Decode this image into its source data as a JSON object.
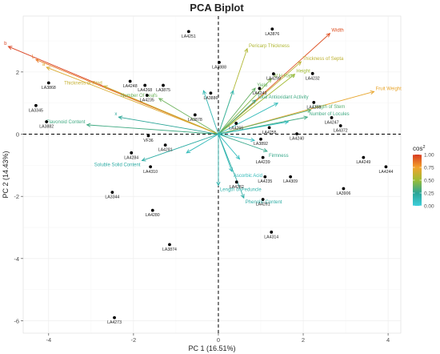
{
  "chart_data": {
    "type": "scatter",
    "title": "PCA Biplot",
    "xlabel": "PC 1 (16.51%)",
    "ylabel": "PC 2 (14.43%)",
    "xlim": [
      -4.6,
      4.3
    ],
    "ylim": [
      -6.4,
      3.8
    ],
    "xticks": [
      -4,
      -2,
      0,
      2,
      4
    ],
    "yticks": [
      -6,
      -4,
      -2,
      0,
      2
    ],
    "grid": true,
    "legend_position": "right",
    "legend": {
      "title": "cos",
      "title_sup": "2",
      "ticks": [
        1.0,
        0.75,
        0.5,
        0.25,
        0.0
      ],
      "tick_labels": [
        "1.00",
        "0.75",
        "0.50",
        "0.25",
        "0.00"
      ],
      "color_stops": [
        "#3ecfdb",
        "#2aa597",
        "#9bbd35",
        "#f3a22b",
        "#d73a1f"
      ]
    },
    "points": [
      {
        "label": "LA4251",
        "x": -0.7,
        "y": 3.3
      },
      {
        "label": "LA3876",
        "x": 1.27,
        "y": 3.38
      },
      {
        "label": "LA3888",
        "x": 0.02,
        "y": 2.31
      },
      {
        "label": "LA3868",
        "x": -4.0,
        "y": 1.65
      },
      {
        "label": "LA3345",
        "x": -4.3,
        "y": 0.92
      },
      {
        "label": "LA3882",
        "x": -4.05,
        "y": 0.4
      },
      {
        "label": "LA4248",
        "x": -2.08,
        "y": 1.7
      },
      {
        "label": "LA4268",
        "x": -1.73,
        "y": 1.57
      },
      {
        "label": "LA4235",
        "x": -1.68,
        "y": 1.25
      },
      {
        "label": "LA3875",
        "x": -1.3,
        "y": 1.57
      },
      {
        "label": "LA3886",
        "x": -0.18,
        "y": 1.32
      },
      {
        "label": "LA4299",
        "x": 1.3,
        "y": 1.94
      },
      {
        "label": "LA4232",
        "x": 2.22,
        "y": 1.95
      },
      {
        "label": "LA4243",
        "x": 0.97,
        "y": 1.47
      },
      {
        "label": "LA4258",
        "x": 2.25,
        "y": 1.02
      },
      {
        "label": "LA4247",
        "x": 2.67,
        "y": 0.53
      },
      {
        "label": "LA4372",
        "x": 2.88,
        "y": 0.27
      },
      {
        "label": "LA4255",
        "x": 1.2,
        "y": 0.21
      },
      {
        "label": "LA4240",
        "x": 1.85,
        "y": 0.01
      },
      {
        "label": "LA4266",
        "x": 0.42,
        "y": 0.35
      },
      {
        "label": "LA3892",
        "x": 1.0,
        "y": -0.16
      },
      {
        "label": "LA3878",
        "x": -0.55,
        "y": 0.62
      },
      {
        "label": "VF36",
        "x": -1.65,
        "y": -0.05
      },
      {
        "label": "LA4281",
        "x": -1.25,
        "y": -0.35
      },
      {
        "label": "LA4284",
        "x": -2.05,
        "y": -0.6
      },
      {
        "label": "LA4310",
        "x": -1.6,
        "y": -1.05
      },
      {
        "label": "LA4239",
        "x": 1.05,
        "y": -0.75
      },
      {
        "label": "LA4235",
        "x": 1.1,
        "y": -1.37
      },
      {
        "label": "LA4309",
        "x": 1.7,
        "y": -1.37
      },
      {
        "label": "LA4249",
        "x": 3.42,
        "y": -0.75
      },
      {
        "label": "LA4244",
        "x": 3.95,
        "y": -1.05
      },
      {
        "label": "LA3906",
        "x": 2.95,
        "y": -1.75
      },
      {
        "label": "LA4282",
        "x": 0.43,
        "y": -1.54
      },
      {
        "label": "LA4261",
        "x": 1.05,
        "y": -2.1
      },
      {
        "label": "LA3344",
        "x": -2.5,
        "y": -1.87
      },
      {
        "label": "LA4280",
        "x": -1.55,
        "y": -2.45
      },
      {
        "label": "LA4314",
        "x": 1.25,
        "y": -3.15
      },
      {
        "label": "LA3874",
        "x": -1.15,
        "y": -3.55
      },
      {
        "label": "LA4273",
        "x": -2.45,
        "y": -5.9
      }
    ],
    "variables": [
      {
        "label": "Width",
        "x": 2.63,
        "y": 3.24,
        "cos2": 0.95
      },
      {
        "label": "Fruit Weight",
        "x": 3.67,
        "y": 1.37,
        "cos2": 0.72
      },
      {
        "label": "Pericarp Thickness",
        "x": 0.68,
        "y": 2.75,
        "cos2": 0.56
      },
      {
        "label": "Thickness of Septa",
        "x": 1.95,
        "y": 2.33,
        "cos2": 0.6
      },
      {
        "label": "Height",
        "x": 1.8,
        "y": 1.93,
        "cos2": 0.52
      },
      {
        "label": "W H Ratio",
        "x": 1.25,
        "y": 1.78,
        "cos2": 0.45
      },
      {
        "label": "Yield",
        "x": 0.87,
        "y": 1.48,
        "cos2": 0.38
      },
      {
        "label": "Total Antioxidant Activity",
        "x": 0.88,
        "y": 1.1,
        "cos2": 0.3
      },
      {
        "label": "Length of Stem",
        "x": 2.18,
        "y": 0.78,
        "cos2": 0.35
      },
      {
        "label": "Number of Locules",
        "x": 2.1,
        "y": 0.55,
        "cos2": 0.3
      },
      {
        "label": "b",
        "x": -4.95,
        "y": 2.82,
        "cos2": 0.98
      },
      {
        "label": "L",
        "x": -4.3,
        "y": 2.4,
        "cos2": 0.85
      },
      {
        "label": "a",
        "x": -4.05,
        "y": 2.15,
        "cos2": 0.68
      },
      {
        "label": "Thickness of Rind",
        "x": -2.7,
        "y": 1.55,
        "cos2": 0.62
      },
      {
        "label": "Number Of Leafs",
        "x": -1.4,
        "y": 1.15,
        "cos2": 0.4
      },
      {
        "label": "x",
        "x": -2.35,
        "y": 0.55,
        "cos2": 0.25
      },
      {
        "label": "Flavonoid Content",
        "x": -3.1,
        "y": 0.3,
        "cos2": 0.3
      },
      {
        "label": "Soluble Solid Content",
        "x": -1.8,
        "y": -0.85,
        "cos2": 0.2
      },
      {
        "label": "Firmness",
        "x": 1.15,
        "y": -0.55,
        "cos2": 0.28
      },
      {
        "label": "Ascorbic Acid",
        "x": 0.32,
        "y": -1.2,
        "cos2": 0.12
      },
      {
        "label": "Length of Peduncle",
        "x": 0.0,
        "y": -1.65,
        "cos2": 0.18
      },
      {
        "label": "Phenolic Content",
        "x": 0.6,
        "y": -2.05,
        "cos2": 0.2
      },
      {
        "label": "",
        "x": 1.65,
        "y": 0.4,
        "cos2": 0.1
      },
      {
        "label": "",
        "x": 1.4,
        "y": 1.0,
        "cos2": 0.12
      },
      {
        "label": "",
        "x": 0.35,
        "y": 1.4,
        "cos2": 0.15
      },
      {
        "label": "",
        "x": -0.35,
        "y": 1.4,
        "cos2": 0.15
      },
      {
        "label": "",
        "x": 0.85,
        "y": -0.2,
        "cos2": 0.1
      },
      {
        "label": "",
        "x": 0.5,
        "y": -0.8,
        "cos2": 0.1
      },
      {
        "label": "",
        "x": -0.75,
        "y": -0.6,
        "cos2": 0.12
      }
    ]
  }
}
